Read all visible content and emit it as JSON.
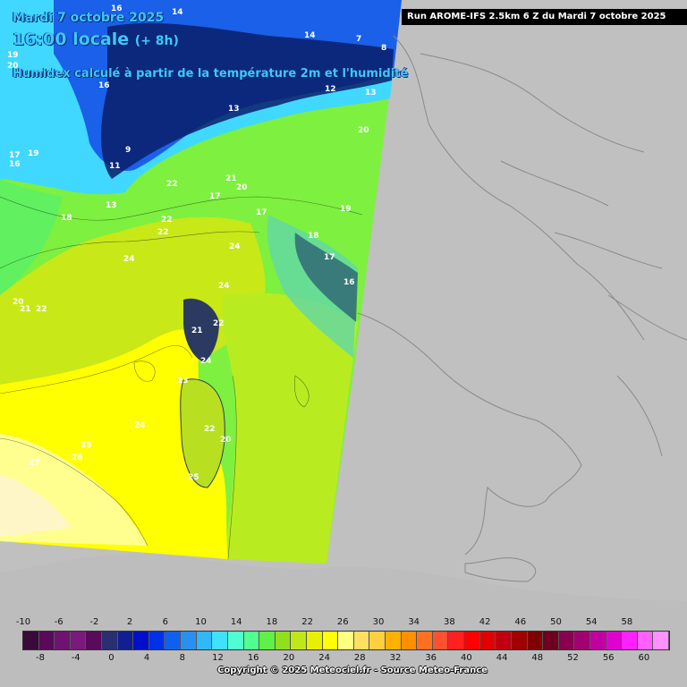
{
  "header": {
    "date": "Mardi 7 octobre 2025",
    "time": "16:00 locale",
    "offset": "(+ 8h)",
    "parameter": "Humidex calculé à partir de la température 2m et l'humidité"
  },
  "run_banner": "Run AROME-IFS 2.5km 6 Z du Mardi 7 octobre 2025",
  "legend": {
    "top_ticks": [
      "-10",
      "-6",
      "-2",
      "2",
      "6",
      "10",
      "14",
      "18",
      "22",
      "26",
      "30",
      "34",
      "38",
      "42",
      "46",
      "50",
      "54",
      "58"
    ],
    "bottom_ticks": [
      "-8",
      "-4",
      "0",
      "4",
      "8",
      "12",
      "16",
      "20",
      "24",
      "28",
      "32",
      "36",
      "40",
      "44",
      "48",
      "52",
      "56",
      "60"
    ],
    "colors": [
      "#3a0a3a",
      "#5a0a5a",
      "#6e1470",
      "#7a1a7a",
      "#5a0a5a",
      "#283070",
      "#102090",
      "#0010c8",
      "#0030e8",
      "#1060f0",
      "#2a90f0",
      "#30b8f8",
      "#40e0ff",
      "#50ffd0",
      "#50ff90",
      "#60f048",
      "#90e020",
      "#c0e818",
      "#e8f000",
      "#ffff00",
      "#ffff80",
      "#ffe060",
      "#ffd040",
      "#ffb000",
      "#ff9000",
      "#ff7020",
      "#ff5030",
      "#ff2020",
      "#ff0000",
      "#e00000",
      "#c00010",
      "#a00000",
      "#800000",
      "#700020",
      "#880050",
      "#a00070",
      "#c000a0",
      "#e000d0",
      "#ff20ff",
      "#ff60ff",
      "#ff90ff"
    ]
  },
  "copyright": "Copyright © 2025 Meteociel.fr - Source Meteo-France",
  "map_labels": [
    {
      "text": "14"
    },
    {
      "text": "16"
    },
    {
      "text": "19"
    },
    {
      "text": "20"
    },
    {
      "text": "16"
    },
    {
      "text": "14"
    },
    {
      "text": "7"
    },
    {
      "text": "8"
    },
    {
      "text": "12"
    },
    {
      "text": "13"
    },
    {
      "text": "13"
    },
    {
      "text": "20"
    },
    {
      "text": "17"
    },
    {
      "text": "19"
    },
    {
      "text": "16"
    },
    {
      "text": "11"
    },
    {
      "text": "9"
    },
    {
      "text": "22"
    },
    {
      "text": "21"
    },
    {
      "text": "20"
    },
    {
      "text": "17"
    },
    {
      "text": "13"
    },
    {
      "text": "18"
    },
    {
      "text": "22"
    },
    {
      "text": "22"
    },
    {
      "text": "17"
    },
    {
      "text": "19"
    },
    {
      "text": "24"
    },
    {
      "text": "24"
    },
    {
      "text": "18"
    },
    {
      "text": "17"
    },
    {
      "text": "16"
    },
    {
      "text": "20"
    },
    {
      "text": "21"
    },
    {
      "text": "22"
    },
    {
      "text": "24"
    },
    {
      "text": "21"
    },
    {
      "text": "22"
    },
    {
      "text": "24"
    },
    {
      "text": "23"
    },
    {
      "text": "24"
    },
    {
      "text": "22"
    },
    {
      "text": "20"
    },
    {
      "text": "25"
    },
    {
      "text": "26"
    },
    {
      "text": "27"
    },
    {
      "text": "25"
    }
  ]
}
